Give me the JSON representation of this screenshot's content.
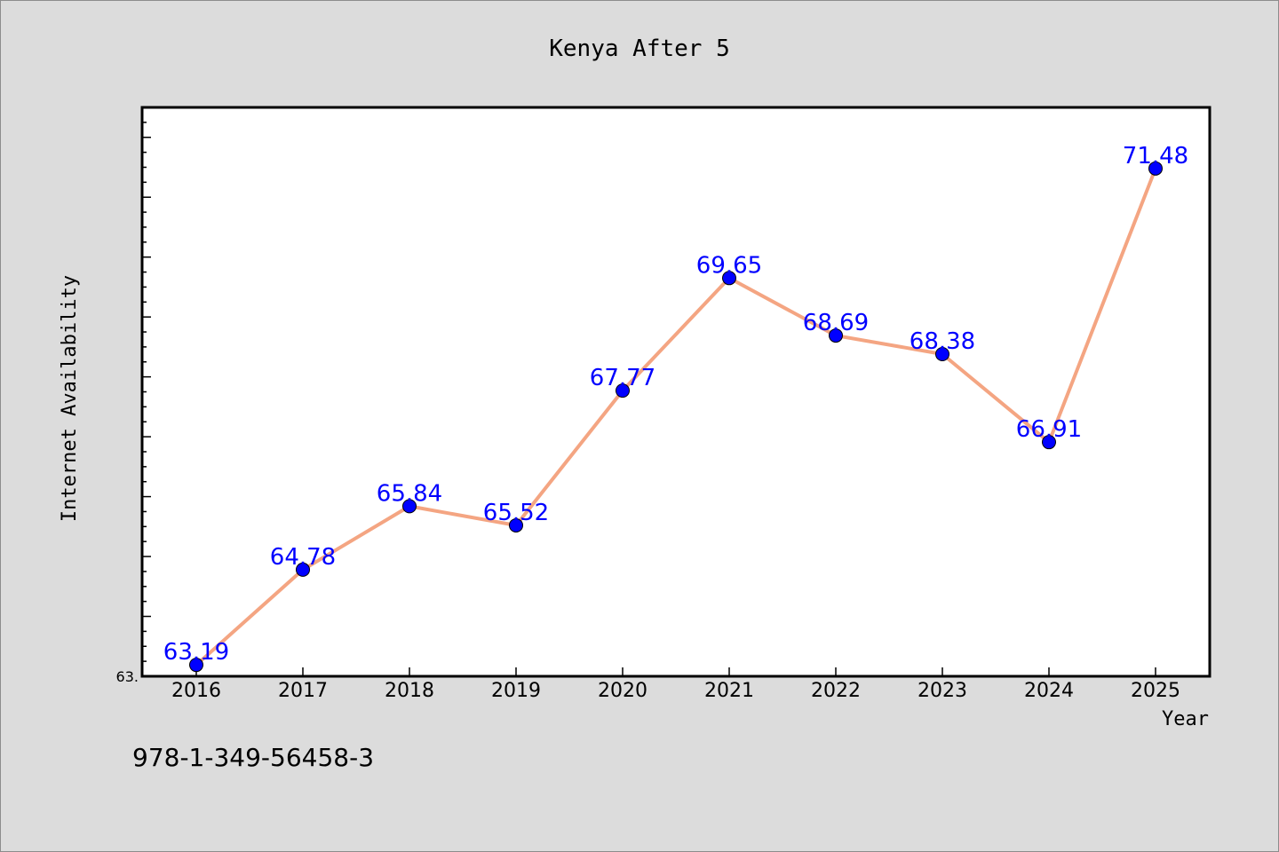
{
  "footer": {
    "id_text": "978-1-349-56458-3"
  },
  "colors": {
    "background": "#dcdcdc",
    "plot_background": "#ffffff",
    "line": "#f4a582",
    "marker": "#0000ff",
    "label": "#0000ff"
  },
  "chart_data": {
    "type": "line",
    "title": "Kenya After 5",
    "xlabel": "Year",
    "ylabel": "Internet Availability",
    "categories": [
      "2016",
      "2017",
      "2018",
      "2019",
      "2020",
      "2021",
      "2022",
      "2023",
      "2024",
      "2025"
    ],
    "series": [
      {
        "values": [
          63.19,
          64.78,
          65.84,
          65.52,
          67.77,
          69.65,
          68.69,
          68.38,
          66.91,
          71.48
        ],
        "data_labels": [
          "63.19",
          "64.78",
          "65.84",
          "65.52",
          "67.77",
          "69.65",
          "68.69",
          "68.38",
          "66.91",
          "71.48"
        ]
      }
    ],
    "ylim": [
      63.0,
      72.5
    ],
    "ytick_labels": [
      "63."
    ],
    "grid": false,
    "legend": "none"
  }
}
